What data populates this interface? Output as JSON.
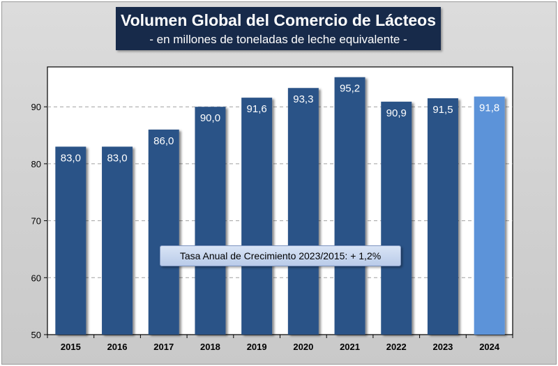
{
  "header": {
    "title": "Volumen Global del Comercio de Lácteos",
    "subtitle": "- en millones de toneladas de leche equivalente -"
  },
  "note": "Tasa Anual de Crecimiento 2023/2015: + 1,2%",
  "colors": {
    "bar": "#2c5287",
    "bar_highlight": "#5b93d9",
    "title_bg": "#172a4a",
    "plot_bg": "#ffffff",
    "grid": "#a0a0a0"
  },
  "chart_data": {
    "type": "bar",
    "title": "Volumen Global del Comercio de Lácteos",
    "subtitle": "- en millones de toneladas de leche equivalente -",
    "categories": [
      "2015",
      "2016",
      "2017",
      "2018",
      "2019",
      "2020",
      "2021",
      "2022",
      "2023",
      "2024"
    ],
    "values": [
      83.0,
      83.0,
      86.0,
      90.0,
      91.6,
      93.3,
      95.2,
      90.9,
      91.5,
      91.8
    ],
    "value_labels": [
      "83,0",
      "83,0",
      "86,0",
      "90,0",
      "91,6",
      "93,3",
      "95,2",
      "90,9",
      "91,5",
      "91,8"
    ],
    "highlight_index": 9,
    "ylim": [
      50,
      97
    ],
    "yticks": [
      50,
      60,
      70,
      80,
      90
    ],
    "grid": true,
    "xlabel": "",
    "ylabel": "",
    "annotation": "Tasa Anual de Crecimiento 2023/2015: + 1,2%"
  }
}
